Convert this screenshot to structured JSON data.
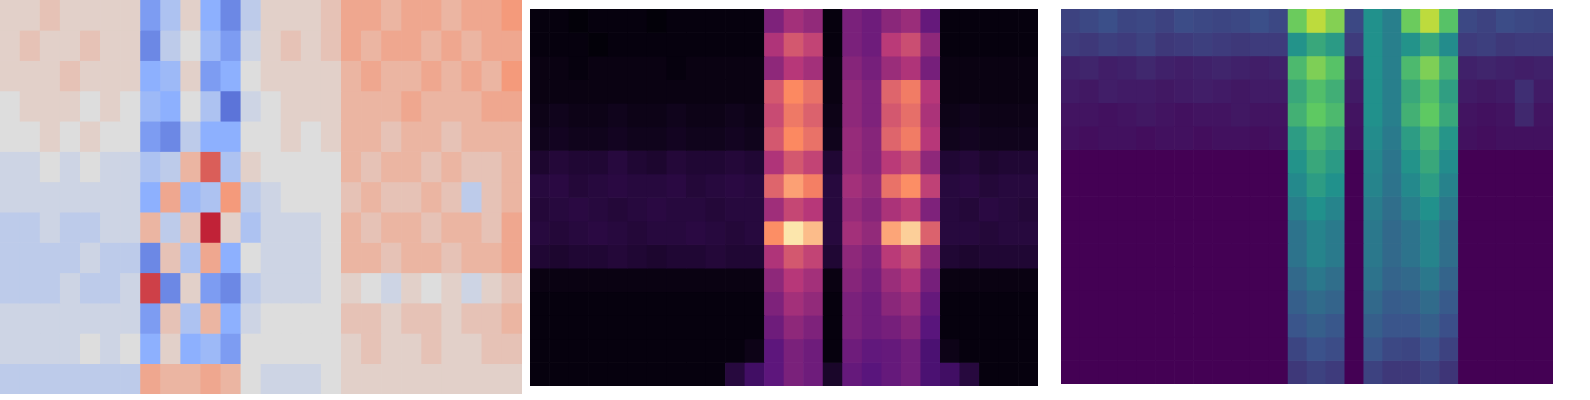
{
  "chart_data": [
    {
      "type": "heatmap",
      "color": "coolwarm",
      "tick_labels": false,
      "color_range": [
        -1,
        1
      ],
      "cells": [
        [
          0.1,
          0.1,
          0.2,
          0.1,
          0.1,
          0.1,
          0.1,
          -0.6,
          -0.3,
          0.1,
          -0.5,
          -0.7,
          -0.2,
          0.1,
          0.1,
          0.1,
          0.2,
          0.4,
          0.4,
          0.3,
          0.4,
          0.4,
          0.3,
          0.4,
          0.4,
          0.5
        ],
        [
          0.1,
          0.2,
          0.1,
          0.1,
          0.2,
          0.1,
          0.1,
          -0.7,
          -0.2,
          0.0,
          -0.4,
          -0.6,
          -0.1,
          0.1,
          0.2,
          0.1,
          0.2,
          0.4,
          0.3,
          0.4,
          0.4,
          0.3,
          0.4,
          0.3,
          0.4,
          0.4
        ],
        [
          0.1,
          0.1,
          0.1,
          0.2,
          0.1,
          0.1,
          0.1,
          -0.5,
          -0.4,
          0.1,
          -0.6,
          -0.5,
          0.0,
          0.1,
          0.1,
          0.1,
          0.1,
          0.3,
          0.4,
          0.3,
          0.3,
          0.4,
          0.3,
          0.4,
          0.3,
          0.5
        ],
        [
          0.0,
          0.1,
          0.1,
          0.1,
          0.0,
          0.1,
          0.0,
          -0.4,
          -0.5,
          0.0,
          -0.3,
          -0.8,
          -0.1,
          0.0,
          0.1,
          0.1,
          0.1,
          0.3,
          0.3,
          0.3,
          0.4,
          0.3,
          0.3,
          0.3,
          0.4,
          0.4
        ],
        [
          0.0,
          0.0,
          0.1,
          0.0,
          0.1,
          0.0,
          0.0,
          -0.6,
          -0.7,
          -0.2,
          -0.5,
          -0.5,
          0.0,
          0.0,
          0.1,
          0.0,
          0.1,
          0.3,
          0.3,
          0.2,
          0.3,
          0.3,
          0.2,
          0.3,
          0.3,
          0.3
        ],
        [
          -0.1,
          -0.1,
          0.0,
          -0.1,
          0.0,
          -0.1,
          -0.1,
          -0.3,
          -0.2,
          0.3,
          0.7,
          -0.3,
          0.1,
          0.0,
          0.0,
          0.0,
          0.0,
          0.3,
          0.2,
          0.3,
          0.3,
          0.2,
          0.3,
          0.2,
          0.2,
          0.3
        ],
        [
          -0.1,
          -0.1,
          -0.1,
          -0.1,
          -0.1,
          -0.1,
          -0.1,
          -0.5,
          0.4,
          -0.4,
          -0.3,
          0.5,
          -0.2,
          -0.1,
          0.0,
          0.0,
          0.0,
          0.2,
          0.3,
          0.2,
          0.2,
          0.3,
          0.2,
          -0.2,
          0.2,
          0.3
        ],
        [
          -0.2,
          -0.2,
          -0.1,
          -0.2,
          -0.2,
          -0.1,
          -0.1,
          0.3,
          -0.2,
          0.2,
          0.9,
          0.1,
          -0.3,
          -0.1,
          -0.1,
          -0.1,
          0.0,
          0.3,
          0.2,
          0.3,
          0.3,
          0.2,
          0.3,
          0.3,
          0.2,
          0.4
        ],
        [
          -0.2,
          -0.2,
          -0.2,
          -0.2,
          -0.1,
          -0.2,
          -0.2,
          -0.7,
          0.2,
          -0.3,
          0.4,
          -0.5,
          0.0,
          -0.1,
          -0.1,
          -0.1,
          0.0,
          0.3,
          0.3,
          0.2,
          0.3,
          0.3,
          0.2,
          0.3,
          0.3,
          0.4
        ],
        [
          -0.2,
          -0.2,
          -0.2,
          -0.1,
          -0.2,
          -0.2,
          -0.1,
          0.8,
          -0.7,
          0.1,
          -0.6,
          -0.7,
          -0.2,
          -0.1,
          -0.1,
          -0.1,
          0.0,
          0.1,
          0.0,
          -0.1,
          0.1,
          0.0,
          0.1,
          -0.1,
          0.1,
          0.2
        ],
        [
          -0.1,
          -0.1,
          -0.1,
          -0.1,
          -0.1,
          -0.1,
          -0.1,
          -0.6,
          0.2,
          -0.3,
          0.3,
          -0.5,
          -0.1,
          0.0,
          0.0,
          0.0,
          0.0,
          0.2,
          0.2,
          0.1,
          0.2,
          0.2,
          0.1,
          0.2,
          0.2,
          0.3
        ],
        [
          -0.1,
          -0.1,
          -0.1,
          -0.1,
          0.0,
          -0.1,
          0.0,
          -0.5,
          0.1,
          -0.5,
          -0.4,
          -0.6,
          0.0,
          0.0,
          0.0,
          0.0,
          0.0,
          0.1,
          0.2,
          0.1,
          0.1,
          0.2,
          0.1,
          0.1,
          0.2,
          0.2
        ],
        [
          -0.2,
          -0.2,
          -0.2,
          -0.2,
          -0.2,
          -0.2,
          -0.2,
          0.4,
          0.3,
          0.3,
          0.4,
          0.3,
          0.0,
          -0.1,
          -0.1,
          -0.1,
          0.0,
          0.1,
          0.1,
          0.1,
          0.1,
          0.1,
          0.1,
          0.1,
          0.1,
          0.1
        ]
      ]
    },
    {
      "type": "heatmap",
      "color": "magma",
      "tick_labels": false,
      "color_range": [
        0,
        1
      ],
      "cells": [
        [
          0.02,
          0.02,
          0.01,
          0.02,
          0.02,
          0.02,
          0.01,
          0.02,
          0.02,
          0.02,
          0.02,
          0.02,
          0.36,
          0.45,
          0.41,
          0.02,
          0.35,
          0.32,
          0.39,
          0.43,
          0.3,
          0.02,
          0.02,
          0.02,
          0.02,
          0.02
        ],
        [
          0.02,
          0.02,
          0.02,
          0.01,
          0.02,
          0.02,
          0.02,
          0.02,
          0.02,
          0.02,
          0.02,
          0.02,
          0.48,
          0.6,
          0.54,
          0.02,
          0.35,
          0.32,
          0.51,
          0.57,
          0.4,
          0.02,
          0.02,
          0.02,
          0.02,
          0.02
        ],
        [
          0.03,
          0.03,
          0.02,
          0.03,
          0.03,
          0.03,
          0.03,
          0.02,
          0.03,
          0.03,
          0.03,
          0.03,
          0.4,
          0.5,
          0.45,
          0.03,
          0.38,
          0.34,
          0.43,
          0.48,
          0.34,
          0.03,
          0.03,
          0.03,
          0.03,
          0.03
        ],
        [
          0.03,
          0.03,
          0.03,
          0.03,
          0.03,
          0.03,
          0.03,
          0.03,
          0.03,
          0.03,
          0.03,
          0.03,
          0.6,
          0.75,
          0.68,
          0.03,
          0.4,
          0.36,
          0.64,
          0.71,
          0.5,
          0.03,
          0.03,
          0.03,
          0.03,
          0.03
        ],
        [
          0.04,
          0.05,
          0.04,
          0.04,
          0.05,
          0.04,
          0.04,
          0.05,
          0.04,
          0.04,
          0.05,
          0.04,
          0.56,
          0.7,
          0.63,
          0.04,
          0.4,
          0.36,
          0.6,
          0.67,
          0.47,
          0.04,
          0.05,
          0.04,
          0.04,
          0.04
        ],
        [
          0.05,
          0.06,
          0.05,
          0.05,
          0.06,
          0.05,
          0.05,
          0.06,
          0.05,
          0.05,
          0.06,
          0.05,
          0.6,
          0.75,
          0.68,
          0.05,
          0.42,
          0.38,
          0.64,
          0.71,
          0.5,
          0.05,
          0.06,
          0.05,
          0.05,
          0.05
        ],
        [
          0.09,
          0.11,
          0.1,
          0.1,
          0.12,
          0.1,
          0.09,
          0.11,
          0.1,
          0.1,
          0.11,
          0.1,
          0.48,
          0.6,
          0.54,
          0.1,
          0.42,
          0.38,
          0.51,
          0.57,
          0.4,
          0.1,
          0.11,
          0.09,
          0.1,
          0.1
        ],
        [
          0.12,
          0.13,
          0.11,
          0.12,
          0.13,
          0.12,
          0.12,
          0.13,
          0.11,
          0.12,
          0.13,
          0.12,
          0.64,
          0.8,
          0.72,
          0.12,
          0.45,
          0.41,
          0.68,
          0.76,
          0.53,
          0.12,
          0.13,
          0.11,
          0.12,
          0.12
        ],
        [
          0.11,
          0.12,
          0.13,
          0.12,
          0.11,
          0.12,
          0.13,
          0.12,
          0.12,
          0.11,
          0.12,
          0.12,
          0.44,
          0.55,
          0.5,
          0.12,
          0.42,
          0.38,
          0.47,
          0.52,
          0.36,
          0.12,
          0.11,
          0.13,
          0.12,
          0.11
        ],
        [
          0.12,
          0.11,
          0.12,
          0.13,
          0.12,
          0.11,
          0.12,
          0.12,
          0.13,
          0.12,
          0.11,
          0.12,
          0.76,
          0.95,
          0.86,
          0.12,
          0.45,
          0.41,
          0.81,
          0.9,
          0.63,
          0.12,
          0.12,
          0.11,
          0.12,
          0.12
        ],
        [
          0.1,
          0.09,
          0.1,
          0.1,
          0.11,
          0.1,
          0.09,
          0.1,
          0.1,
          0.11,
          0.1,
          0.1,
          0.48,
          0.6,
          0.54,
          0.1,
          0.4,
          0.36,
          0.51,
          0.57,
          0.4,
          0.1,
          0.09,
          0.1,
          0.1,
          0.1
        ],
        [
          0.03,
          0.03,
          0.03,
          0.03,
          0.03,
          0.03,
          0.03,
          0.03,
          0.03,
          0.03,
          0.03,
          0.03,
          0.4,
          0.5,
          0.45,
          0.03,
          0.38,
          0.34,
          0.43,
          0.48,
          0.34,
          0.03,
          0.03,
          0.03,
          0.03,
          0.03
        ],
        [
          0.02,
          0.02,
          0.02,
          0.02,
          0.02,
          0.02,
          0.02,
          0.02,
          0.02,
          0.02,
          0.02,
          0.02,
          0.36,
          0.45,
          0.41,
          0.02,
          0.35,
          0.32,
          0.39,
          0.43,
          0.3,
          0.02,
          0.02,
          0.02,
          0.02,
          0.02
        ],
        [
          0.02,
          0.02,
          0.02,
          0.02,
          0.02,
          0.02,
          0.02,
          0.02,
          0.02,
          0.02,
          0.02,
          0.02,
          0.32,
          0.4,
          0.36,
          0.02,
          0.35,
          0.32,
          0.34,
          0.38,
          0.27,
          0.02,
          0.02,
          0.02,
          0.02,
          0.02
        ],
        [
          0.02,
          0.02,
          0.02,
          0.02,
          0.02,
          0.02,
          0.02,
          0.02,
          0.02,
          0.02,
          0.02,
          0.04,
          0.28,
          0.35,
          0.32,
          0.02,
          0.32,
          0.29,
          0.3,
          0.33,
          0.23,
          0.04,
          0.02,
          0.02,
          0.02,
          0.02
        ],
        [
          0.02,
          0.02,
          0.02,
          0.02,
          0.02,
          0.02,
          0.02,
          0.02,
          0.02,
          0.02,
          0.12,
          0.2,
          0.28,
          0.35,
          0.32,
          0.08,
          0.3,
          0.27,
          0.3,
          0.33,
          0.23,
          0.2,
          0.12,
          0.02,
          0.02,
          0.02
        ]
      ]
    },
    {
      "type": "heatmap",
      "color": "viridis",
      "tick_labels": false,
      "color_range": [
        0,
        1
      ],
      "cells": [
        [
          0.2,
          0.22,
          0.24,
          0.21,
          0.22,
          0.2,
          0.23,
          0.22,
          0.21,
          0.22,
          0.24,
          0.22,
          0.77,
          0.9,
          0.81,
          0.22,
          0.5,
          0.43,
          0.77,
          0.9,
          0.72,
          0.22,
          0.2,
          0.23,
          0.22,
          0.21
        ],
        [
          0.18,
          0.17,
          0.19,
          0.18,
          0.2,
          0.17,
          0.18,
          0.19,
          0.18,
          0.17,
          0.18,
          0.18,
          0.51,
          0.6,
          0.54,
          0.18,
          0.5,
          0.43,
          0.51,
          0.6,
          0.48,
          0.18,
          0.19,
          0.17,
          0.18,
          0.18
        ],
        [
          0.1,
          0.11,
          0.09,
          0.1,
          0.12,
          0.1,
          0.09,
          0.1,
          0.11,
          0.1,
          0.09,
          0.1,
          0.68,
          0.8,
          0.72,
          0.1,
          0.5,
          0.43,
          0.68,
          0.8,
          0.64,
          0.1,
          0.11,
          0.1,
          0.09,
          0.1
        ],
        [
          0.08,
          0.07,
          0.09,
          0.08,
          0.08,
          0.07,
          0.08,
          0.09,
          0.08,
          0.07,
          0.08,
          0.08,
          0.6,
          0.7,
          0.63,
          0.08,
          0.5,
          0.43,
          0.6,
          0.7,
          0.56,
          0.08,
          0.07,
          0.08,
          0.14,
          0.08
        ],
        [
          0.06,
          0.06,
          0.05,
          0.06,
          0.07,
          0.06,
          0.05,
          0.06,
          0.06,
          0.07,
          0.06,
          0.06,
          0.64,
          0.75,
          0.68,
          0.06,
          0.5,
          0.43,
          0.64,
          0.75,
          0.6,
          0.06,
          0.05,
          0.06,
          0.12,
          0.06
        ],
        [
          0.05,
          0.04,
          0.05,
          0.05,
          0.04,
          0.05,
          0.05,
          0.04,
          0.05,
          0.05,
          0.04,
          0.05,
          0.55,
          0.65,
          0.59,
          0.05,
          0.48,
          0.41,
          0.55,
          0.65,
          0.52,
          0.05,
          0.04,
          0.05,
          0.05,
          0.05
        ],
        [
          0,
          0,
          0,
          0,
          0,
          0,
          0,
          0,
          0,
          0,
          0,
          0,
          0.51,
          0.6,
          0.54,
          0,
          0.46,
          0.39,
          0.51,
          0.6,
          0.48,
          0,
          0,
          0,
          0,
          0
        ],
        [
          0,
          0,
          0,
          0,
          0,
          0,
          0,
          0,
          0,
          0,
          0,
          0,
          0.47,
          0.55,
          0.5,
          0,
          0.45,
          0.38,
          0.47,
          0.55,
          0.44,
          0,
          0,
          0,
          0,
          0
        ],
        [
          0,
          0,
          0,
          0,
          0,
          0,
          0,
          0,
          0,
          0,
          0,
          0,
          0.43,
          0.5,
          0.45,
          0,
          0.42,
          0.36,
          0.43,
          0.5,
          0.4,
          0,
          0,
          0,
          0,
          0
        ],
        [
          0,
          0,
          0,
          0,
          0,
          0,
          0,
          0,
          0,
          0,
          0,
          0,
          0.38,
          0.45,
          0.41,
          0,
          0.4,
          0.34,
          0.38,
          0.45,
          0.36,
          0,
          0,
          0,
          0,
          0
        ],
        [
          0,
          0,
          0,
          0,
          0,
          0,
          0,
          0,
          0,
          0,
          0,
          0,
          0.38,
          0.45,
          0.41,
          0,
          0.4,
          0.34,
          0.38,
          0.45,
          0.36,
          0,
          0,
          0,
          0,
          0
        ],
        [
          0,
          0,
          0,
          0,
          0,
          0,
          0,
          0,
          0,
          0,
          0,
          0,
          0.34,
          0.4,
          0.36,
          0,
          0.38,
          0.32,
          0.34,
          0.4,
          0.32,
          0,
          0,
          0,
          0,
          0
        ],
        [
          0,
          0,
          0,
          0,
          0,
          0,
          0,
          0,
          0,
          0,
          0,
          0,
          0.3,
          0.35,
          0.32,
          0,
          0.34,
          0.29,
          0.3,
          0.35,
          0.28,
          0,
          0,
          0,
          0,
          0
        ],
        [
          0,
          0,
          0,
          0,
          0,
          0,
          0,
          0,
          0,
          0,
          0,
          0,
          0.26,
          0.3,
          0.27,
          0,
          0.3,
          0.26,
          0.26,
          0.3,
          0.24,
          0,
          0,
          0,
          0,
          0
        ],
        [
          0,
          0,
          0,
          0,
          0,
          0,
          0,
          0,
          0,
          0,
          0,
          0,
          0.21,
          0.25,
          0.23,
          0,
          0.26,
          0.22,
          0.21,
          0.25,
          0.2,
          0,
          0,
          0,
          0,
          0
        ],
        [
          0,
          0,
          0,
          0,
          0,
          0,
          0,
          0,
          0,
          0,
          0,
          0,
          0.17,
          0.2,
          0.18,
          0,
          0.2,
          0.17,
          0.17,
          0.2,
          0.16,
          0,
          0,
          0,
          0,
          0
        ]
      ]
    }
  ]
}
